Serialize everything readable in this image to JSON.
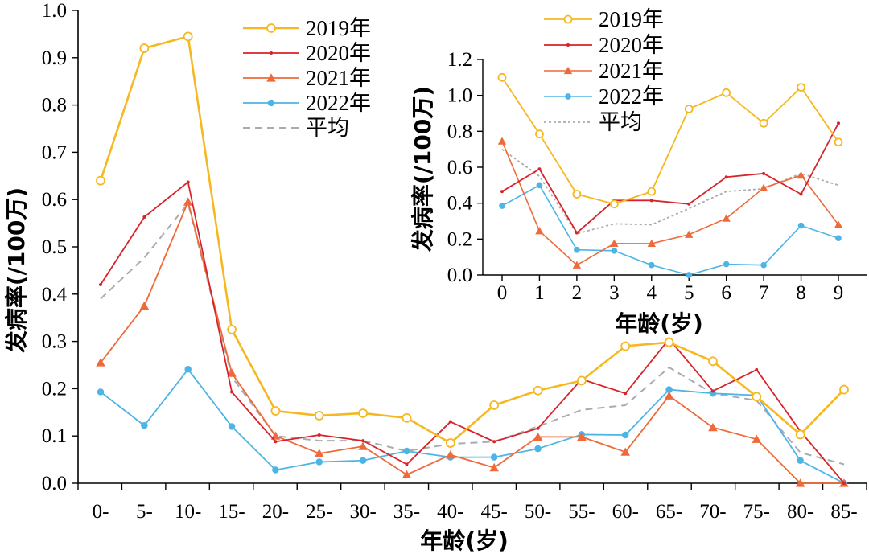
{
  "chart_data": [
    {
      "type": "line",
      "title": "",
      "xlabel": "年龄(岁)",
      "ylabel": "发病率(/100万)",
      "categories": [
        "0-",
        "5-",
        "10-",
        "15-",
        "20-",
        "25-",
        "30-",
        "35-",
        "40-",
        "45-",
        "50-",
        "55-",
        "60-",
        "65-",
        "70-",
        "75-",
        "80-",
        "85-"
      ],
      "ylim": [
        0,
        1.0
      ],
      "yticks": [
        "0.0",
        "0.1",
        "0.2",
        "0.3",
        "0.4",
        "0.5",
        "0.6",
        "0.7",
        "0.8",
        "0.9",
        "1.0"
      ],
      "legend_position": "top-right",
      "series": [
        {
          "name": "2019年",
          "color": "#F5B820",
          "marker": "open-circle",
          "dash": "solid",
          "values": [
            0.64,
            0.92,
            0.945,
            0.325,
            0.153,
            0.143,
            0.148,
            0.138,
            0.085,
            0.165,
            0.196,
            0.217,
            0.29,
            0.298,
            0.258,
            0.183,
            0.103,
            0.198
          ]
        },
        {
          "name": "2020年",
          "color": "#D8232A",
          "marker": "dot",
          "dash": "solid",
          "values": [
            0.42,
            0.563,
            0.637,
            0.193,
            0.088,
            0.102,
            0.09,
            0.04,
            0.13,
            0.088,
            0.116,
            0.22,
            0.19,
            0.305,
            0.195,
            0.24,
            0.11,
            0.0
          ]
        },
        {
          "name": "2021年",
          "color": "#EE6A3A",
          "marker": "triangle",
          "dash": "solid",
          "values": [
            0.255,
            0.375,
            0.595,
            0.233,
            0.1,
            0.063,
            0.078,
            0.018,
            0.06,
            0.033,
            0.098,
            0.098,
            0.066,
            0.185,
            0.118,
            0.093,
            0.0,
            0.0
          ]
        },
        {
          "name": "2022年",
          "color": "#4CB5E6",
          "marker": "circle",
          "dash": "solid",
          "values": [
            0.193,
            0.122,
            0.241,
            0.12,
            0.028,
            0.045,
            0.048,
            0.068,
            0.055,
            0.055,
            0.073,
            0.103,
            0.102,
            0.198,
            0.19,
            0.186,
            0.048,
            0.0
          ]
        },
        {
          "name": "平均",
          "color": "#A9ACAF",
          "marker": "none",
          "dash": "dashed",
          "values": [
            0.39,
            0.477,
            0.592,
            0.225,
            0.1,
            0.09,
            0.09,
            0.068,
            0.083,
            0.088,
            0.12,
            0.155,
            0.165,
            0.245,
            0.19,
            0.175,
            0.065,
            0.04
          ]
        }
      ]
    },
    {
      "type": "line",
      "title": "",
      "xlabel": "年龄(岁)",
      "ylabel": "发病率(/100万)",
      "categories": [
        "0",
        "1",
        "2",
        "3",
        "4",
        "5",
        "6",
        "7",
        "8",
        "9"
      ],
      "ylim": [
        0,
        1.2
      ],
      "yticks": [
        "0.0",
        "0.2",
        "0.4",
        "0.6",
        "0.8",
        "1.0",
        "1.2"
      ],
      "legend_position": "top",
      "series": [
        {
          "name": "2019年",
          "color": "#F5B820",
          "marker": "open-circle",
          "dash": "solid",
          "values": [
            1.1,
            0.785,
            0.45,
            0.395,
            0.465,
            0.925,
            1.015,
            0.845,
            1.045,
            0.74
          ]
        },
        {
          "name": "2020年",
          "color": "#D8232A",
          "marker": "dot",
          "dash": "solid",
          "values": [
            0.465,
            0.59,
            0.235,
            0.415,
            0.415,
            0.395,
            0.545,
            0.565,
            0.45,
            0.845
          ]
        },
        {
          "name": "2021年",
          "color": "#EE6A3A",
          "marker": "triangle",
          "dash": "solid",
          "values": [
            0.745,
            0.245,
            0.055,
            0.175,
            0.175,
            0.225,
            0.315,
            0.485,
            0.555,
            0.28
          ]
        },
        {
          "name": "2022年",
          "color": "#4CB5E6",
          "marker": "circle",
          "dash": "solid",
          "values": [
            0.385,
            0.5,
            0.14,
            0.135,
            0.055,
            0.0,
            0.06,
            0.055,
            0.275,
            0.205
          ]
        },
        {
          "name": "平均",
          "color": "#A9ACAF",
          "marker": "none",
          "dash": "dotted",
          "values": [
            0.7,
            0.55,
            0.23,
            0.285,
            0.28,
            0.37,
            0.465,
            0.48,
            0.565,
            0.5
          ]
        }
      ]
    }
  ]
}
